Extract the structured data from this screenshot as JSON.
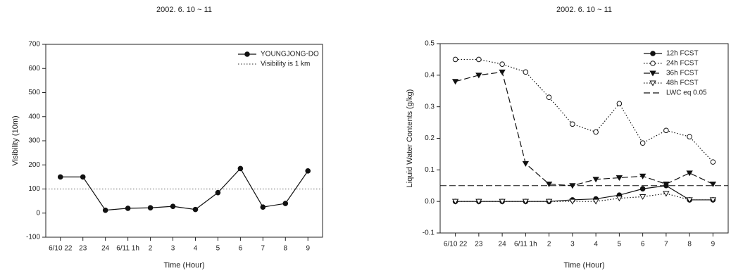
{
  "chart_data": [
    {
      "type": "line",
      "title": "2002. 6. 10 ~ 11",
      "xlabel": "Time (Hour)",
      "ylabel": "Visibility (10m)",
      "categories": [
        "6/10 22",
        "23",
        "24",
        "6/11 1h",
        "2",
        "3",
        "4",
        "5",
        "6",
        "7",
        "8",
        "9"
      ],
      "ylim": [
        -100,
        700
      ],
      "yticks": [
        -100,
        0,
        100,
        200,
        300,
        400,
        500,
        600,
        700
      ],
      "legend": "upper right",
      "series": [
        {
          "name": "YOUNGJONG-DO",
          "color": "#111111",
          "marker": "circle-filled",
          "dash": "solid",
          "values": [
            150,
            150,
            12,
            20,
            22,
            28,
            15,
            85,
            185,
            25,
            40,
            175
          ]
        }
      ],
      "hlines": [
        {
          "name": "Visibility is 1 km",
          "value": 100,
          "color": "#555555",
          "dash": "dotted"
        }
      ]
    },
    {
      "type": "line",
      "title": "2002. 6. 10 ~ 11",
      "xlabel": "Time (Hour)",
      "ylabel": "Liquid Water Contents (g/kg)",
      "categories": [
        "6/10 22",
        "23",
        "24",
        "6/11 1h",
        "2",
        "3",
        "4",
        "5",
        "6",
        "7",
        "8",
        "9"
      ],
      "ylim": [
        -0.1,
        0.5
      ],
      "yticks": [
        -0.1,
        {
          "value": 0,
          "label": "0.0"
        },
        0.1,
        0.2,
        0.3,
        0.4,
        0.5
      ],
      "legend": "upper right",
      "series": [
        {
          "name": "12h FCST",
          "color": "#111111",
          "marker": "circle-filled",
          "dash": "solid",
          "values": [
            0,
            0,
            0,
            0,
            0,
            0.005,
            0.008,
            0.02,
            0.04,
            0.05,
            0.005,
            0.005
          ]
        },
        {
          "name": "24h FCST",
          "color": "#111111",
          "marker": "circle-open",
          "dash": "dotted",
          "values": [
            0.45,
            0.45,
            0.435,
            0.41,
            0.33,
            0.245,
            0.22,
            0.31,
            0.185,
            0.225,
            0.205,
            0.125
          ]
        },
        {
          "name": "36h FCST",
          "color": "#111111",
          "marker": "triangle-filled",
          "dash": "dashed",
          "values": [
            0.38,
            0.4,
            0.41,
            0.12,
            0.055,
            0.05,
            0.07,
            0.075,
            0.08,
            0.055,
            0.09,
            0.055
          ]
        },
        {
          "name": "48h FCST",
          "color": "#111111",
          "marker": "triangle-open",
          "dash": "dotted",
          "values": [
            0,
            0,
            0,
            0,
            0,
            0,
            0,
            0.01,
            0.015,
            0.025,
            0.005,
            0.005
          ]
        }
      ],
      "hlines": [
        {
          "name": "LWC eq 0.05",
          "value": 0.05,
          "color": "#111111",
          "dash": "dashed"
        }
      ]
    }
  ]
}
